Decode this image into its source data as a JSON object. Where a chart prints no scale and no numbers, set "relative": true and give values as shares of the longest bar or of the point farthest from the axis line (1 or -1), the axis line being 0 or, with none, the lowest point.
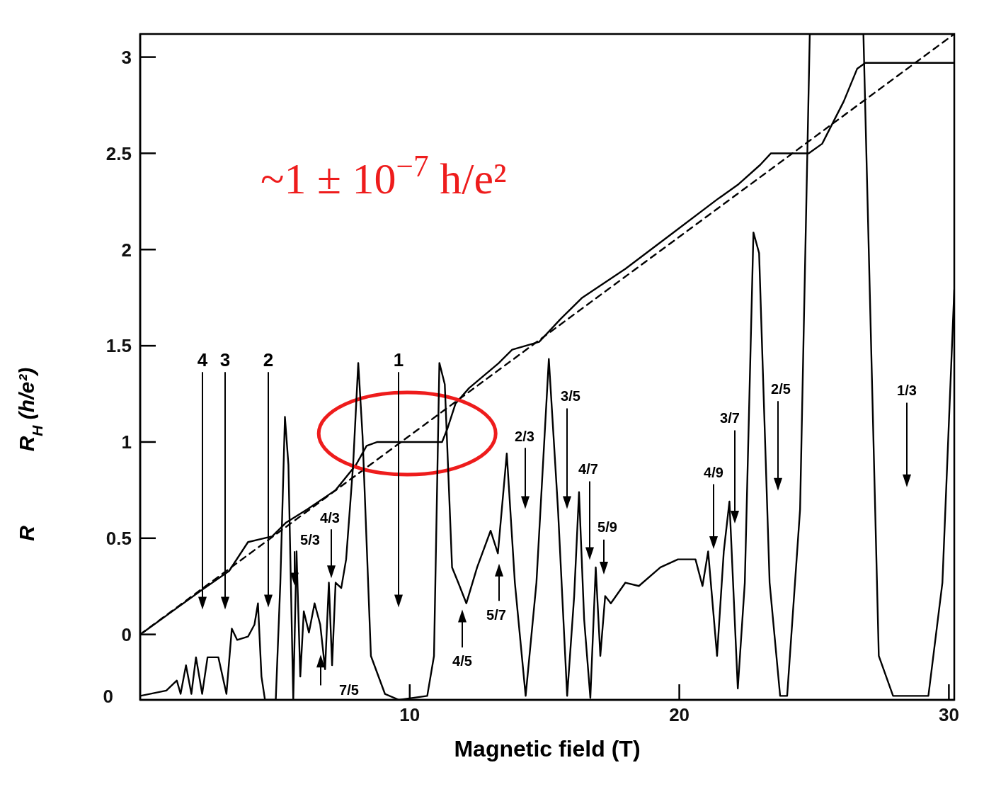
{
  "chart_data": [
    {
      "type": "line",
      "ylabel": "R$_{H}$ (h/e²)",
      "xlim": [
        0,
        30.2
      ],
      "xticks": [
        10,
        20,
        30
      ],
      "ylim": [
        -0.34,
        3.12
      ],
      "yticks": [
        0,
        0.5,
        1,
        1.5,
        2,
        2.5,
        3
      ],
      "tick_labels": "y",
      "marker": "none",
      "series": [
        {
          "type": "line",
          "color": "#000000",
          "x": [
            0.1,
            2.28,
            3.3,
            4.0,
            4.9,
            5.4,
            6.2,
            7.25,
            8.0,
            8.4,
            8.8,
            11.2,
            11.4,
            11.7,
            12.2,
            13.3,
            13.8,
            14.8,
            15.6,
            16.4,
            18.0,
            19.8,
            21.4,
            22.2,
            23.0,
            23.4,
            24.8,
            25.3,
            26.1,
            26.6,
            26.9,
            30.2
          ],
          "values": [
            0.01,
            0.23,
            0.33,
            0.48,
            0.51,
            0.58,
            0.65,
            0.75,
            0.88,
            0.98,
            1.0,
            1.0,
            1.07,
            1.2,
            1.28,
            1.41,
            1.48,
            1.52,
            1.64,
            1.75,
            1.9,
            2.09,
            2.26,
            2.34,
            2.44,
            2.5,
            2.5,
            2.55,
            2.77,
            2.94,
            2.97,
            2.97
          ]
        },
        {
          "type": "line",
          "color": "#000000",
          "line_style": "dashed",
          "x": [
            0,
            30.2
          ],
          "values": [
            0,
            3.12
          ]
        }
      ],
      "annotations": [
        "~1 ± 10$^{−7}$ h/e²"
      ]
    },
    {
      "type": "line",
      "relative": true,
      "ylabel": "R",
      "xlabel": "Magnetic field (T)",
      "xlim": [
        0,
        30.2
      ],
      "xticks": [
        10,
        20,
        30
      ],
      "tick_labels": "x",
      "marker": "none",
      "series": [
        {
          "type": "line",
          "color": "#000000",
          "x": [
            0.0,
            0.97,
            1.36,
            1.5,
            1.7,
            1.9,
            2.07,
            2.3,
            2.5,
            2.9,
            3.2,
            3.4,
            3.6,
            4.0,
            4.24,
            4.37,
            4.5,
            4.63,
            5.03,
            5.2,
            5.37,
            5.5,
            5.68,
            5.8,
            5.94,
            6.07,
            6.26,
            6.47,
            6.68,
            6.86,
            7.0,
            7.12,
            7.25,
            7.46,
            7.64,
            7.9,
            8.09,
            8.25,
            8.56,
            9.08,
            9.6,
            10.65,
            10.9,
            11.1,
            11.3,
            11.57,
            11.8,
            12.1,
            12.5,
            13.0,
            13.27,
            13.6,
            13.9,
            14.3,
            14.7,
            15.16,
            15.5,
            15.84,
            16.1,
            16.28,
            16.47,
            16.7,
            16.9,
            17.07,
            17.25,
            17.46,
            18.0,
            18.5,
            19.3,
            19.95,
            20.6,
            20.86,
            21.07,
            21.4,
            21.65,
            21.86,
            22.17,
            22.43,
            22.75,
            22.96,
            23.35,
            23.74,
            24.0,
            24.48,
            24.84,
            26.83,
            27.4,
            27.93,
            29.24,
            29.76,
            30.2
          ],
          "values": [
            0.006,
            0.014,
            0.029,
            0.009,
            0.052,
            0.009,
            0.064,
            0.009,
            0.064,
            0.064,
            0.009,
            0.107,
            0.09,
            0.095,
            0.113,
            0.145,
            0.035,
            0,
            0,
            0.176,
            0.425,
            0.353,
            0,
            0.223,
            0.035,
            0.133,
            0.101,
            0.145,
            0.113,
            0.046,
            0.176,
            0.052,
            0.176,
            0.168,
            0.211,
            0.353,
            0.506,
            0.396,
            0.066,
            0.009,
            0,
            0.006,
            0.066,
            0.506,
            0.474,
            0.199,
            0.176,
            0.145,
            0.199,
            0.254,
            0.22,
            0.37,
            0.176,
            0.006,
            0.176,
            0.512,
            0.286,
            0.006,
            0.156,
            0.312,
            0.121,
            0.003,
            0.199,
            0.066,
            0.156,
            0.145,
            0.176,
            0.171,
            0.199,
            0.211,
            0.211,
            0.171,
            0.223,
            0.066,
            0.223,
            0.298,
            0.017,
            0.176,
            0.702,
            0.671,
            0.176,
            0.006,
            0.006,
            0.286,
            1,
            1,
            0.066,
            0.006,
            0.006,
            0.176,
            0.616
          ]
        }
      ],
      "annotations": [
        "0",
        "4",
        "3",
        "2",
        "1",
        "5/3",
        "4/3",
        "7/5",
        "4/5",
        "5/7",
        "2/3",
        "3/5",
        "4/7",
        "5/9",
        "4/9",
        "3/7",
        "2/5",
        "1/3"
      ]
    }
  ]
}
